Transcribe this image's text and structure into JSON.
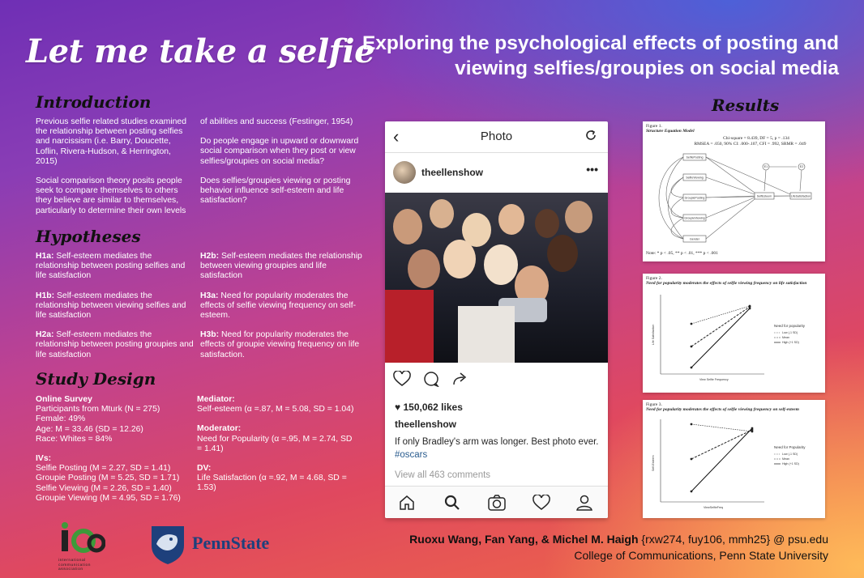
{
  "title": "Let me take a selfie",
  "subtitle": "Exploring the psychological effects of posting and viewing selfies/groupies on social media",
  "introduction": {
    "heading": "Introduction",
    "left_p1": "Previous selfie related studies examined the relationship between posting selfies and narcissism (i.e. Barry, Doucette, Loflin, Rivera-Hudson, & Herrington, 2015)",
    "left_p2": "Social comparison theory posits people seek to compare themselves to others they believe are similar to themselves, particularly to determine their own levels",
    "right_p1": "of abilities and success (Festinger, 1954)",
    "right_p2": "Do people engage in upward or downward social comparison when they post or view selfies/groupies on social media?",
    "right_p3": "Does selfies/groupies viewing or posting behavior influence self-esteem and life satisfaction?"
  },
  "hypotheses": {
    "heading": "Hypotheses",
    "items": [
      {
        "id": "H1a:",
        "text": " Self-esteem mediates the relationship between posting selfies and life satisfaction"
      },
      {
        "id": "H1b:",
        "text": " Self-esteem mediates the relationship between viewing selfies and life satisfaction"
      },
      {
        "id": "H2a:",
        "text": " Self-esteem mediates the relationship between posting groupies and life satisfaction"
      },
      {
        "id": "H2b:",
        "text": " Self-esteem mediates the relationship between viewing groupies and life satisfaction"
      },
      {
        "id": "H3a:",
        "text": " Need for popularity moderates the effects of selfie viewing frequency on self-esteem."
      },
      {
        "id": "H3b:",
        "text": " Need for popularity moderates the effects of groupie viewing frequency on life satisfaction."
      }
    ]
  },
  "study_design": {
    "heading": "Study Design",
    "survey_title": "Online Survey",
    "participants": "Participants from Mturk (N = 275)",
    "female": "Female: 49%",
    "age": "Age: M = 33.46 (SD = 12.26)",
    "race": "Race: Whites = 84%",
    "ivs_title": "IVs:",
    "ivs": [
      "Selfie Posting (M = 2.27, SD = 1.41)",
      "Groupie Posting (M = 5.25, SD = 1.71)",
      "Selfie Viewing (M = 2.26, SD = 1.40)",
      "Groupie Viewing (M = 4.95, SD = 1.76)"
    ],
    "mediator_title": "Mediator:",
    "mediator": "Self-esteem (α =.87, M = 5.08, SD = 1.04)",
    "moderator_title": "Moderator:",
    "moderator": "Need for Popularity (α =.95, M = 2.74, SD = 1.41)",
    "dv_title": "DV:",
    "dv": "Life Satisfaction (α =.92, M = 4.68, SD = 1.53)"
  },
  "instagram": {
    "header_title": "Photo",
    "username": "theellenshow",
    "likes": "150,062 likes",
    "poster_name": "theellenshow",
    "caption": "If only Bradley's arm was longer. Best photo ever.",
    "hashtag": "#oscars",
    "comments": "View all 463 comments"
  },
  "results": {
    "heading": "Results",
    "figure1": {
      "label": "Figure 1.",
      "title": "Structure Equation Model",
      "fit1": "Chi-square = 8.439, DF = 5, p = .134",
      "fit2": "RMSEA = .050, 90% CI: .000-.107, CFI = .992, SRMR = .049",
      "nodes": [
        "SelfiePosting",
        "SelfieViewing",
        "GroupiePosting",
        "GroupieViewing",
        "Gender",
        "SelfEsteem",
        "LifeSatisfaction",
        "E1",
        "E2"
      ],
      "note": "Note: * p < .05, ** p < .01, *** p < .001"
    },
    "figure2": {
      "label": "Figure 2.",
      "title": "Need for popularity moderates the effects of selfie viewing frequency on life satisfaction",
      "xlabel": "View Selfie Frequency",
      "ylabel": "Life Satisfaction",
      "legend_title": "Need for popularity",
      "legend": [
        "Low (-1 SD)",
        "Mean",
        "High (+1 SD)"
      ]
    },
    "figure3": {
      "label": "Figure 3.",
      "title": "Need for popularity moderates the effects of selfie viewing frequency on self-esteem",
      "xlabel": "ViewSelfieFreq",
      "ylabel": "Self-Esteem",
      "legend_title": "Need for Popularity",
      "legend": [
        "Low (-1 SD)",
        "Mean",
        "High (+1 SD)"
      ]
    }
  },
  "logos": {
    "ica_text": "international communication association",
    "pennstate": "PennState"
  },
  "footer": {
    "authors": "Ruoxu Wang, Fan Yang, & Michel M. Haigh",
    "emails": " {rxw274, fuy106, mmh25} @ psu.edu",
    "college": "College of Communications, Penn State University"
  }
}
